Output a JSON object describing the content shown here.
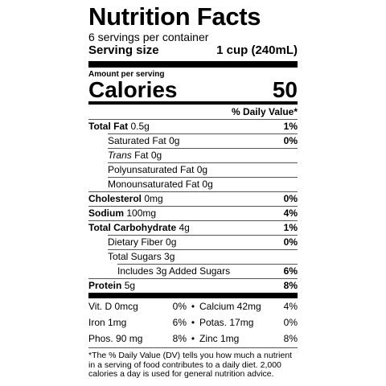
{
  "header": {
    "title": "Nutrition Facts",
    "servings": "6 servings per container",
    "serving_size_label": "Serving size",
    "serving_size_value": "1 cup (240mL)"
  },
  "calories": {
    "amount_label": "Amount per serving",
    "label": "Calories",
    "value": "50"
  },
  "daily_value_header": "% Daily Value*",
  "nutrients": [
    {
      "name": "Total Fat",
      "amount": "0.5g",
      "dv": "1%"
    },
    {
      "name": "Saturated Fat",
      "amount": "0g",
      "dv": "0%"
    },
    {
      "name_italic": "Trans",
      "name": "Fat",
      "amount": "0g"
    },
    {
      "name": "Polyunsaturated Fat",
      "amount": "0g"
    },
    {
      "name": "Monounsaturated Fat",
      "amount": "0g"
    },
    {
      "name": "Cholesterol",
      "amount": "0mg",
      "dv": "0%"
    },
    {
      "name": "Sodium",
      "amount": "100mg",
      "dv": "4%"
    },
    {
      "name": "Total Carbohydrate",
      "amount": "4g",
      "dv": "1%"
    },
    {
      "name": "Dietary Fiber",
      "amount": "0g",
      "dv": "0%"
    },
    {
      "name": "Total Sugars",
      "amount": "3g"
    },
    {
      "name": "Includes 3g Added Sugars",
      "dv": "6%"
    },
    {
      "name": "Protein",
      "amount": "5g",
      "dv": "8%"
    }
  ],
  "vitamins": [
    [
      {
        "name": "Vit. D 0mcg",
        "dv": "0%"
      },
      {
        "name": "Calcium 42mg",
        "dv": "4%"
      }
    ],
    [
      {
        "name": "Iron 1mg",
        "dv": "6%"
      },
      {
        "name": "Potas. 17mg",
        "dv": "0%"
      }
    ],
    [
      {
        "name": "Phos. 90 mg",
        "dv": "8%"
      },
      {
        "name": "Zinc 1mg",
        "dv": "8%"
      }
    ]
  ],
  "footnote": "*The % Daily Value (DV) tells you how much a nutrient in a serving of food contributes to a daily diet. 2,000 calories a day is used for general nutrition advice."
}
